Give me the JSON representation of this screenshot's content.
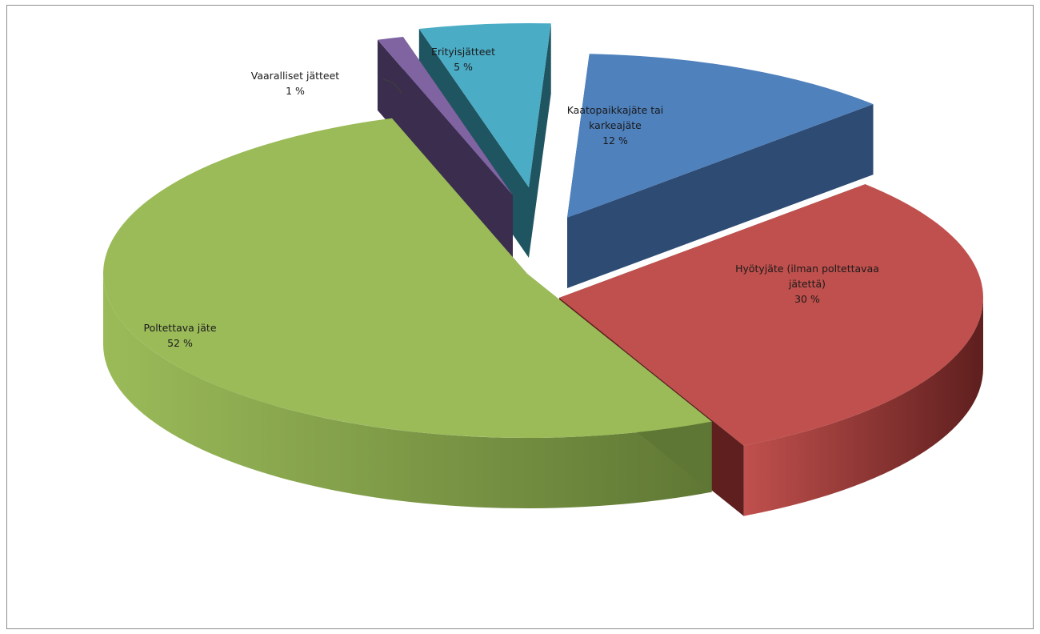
{
  "chart_data": {
    "type": "pie",
    "title": "",
    "style": "exploded 3D pie",
    "legend": "none",
    "slices": [
      {
        "name": "Kaatopaikkajäte tai karkeajäte",
        "label_lines": [
          "Kaatopaikkajäte tai",
          "karkeajäte"
        ],
        "value": 12,
        "percent_label": "12 %",
        "color": "#4F81BD",
        "side_color": "#2E4B73"
      },
      {
        "name": "Hyötyjäte (ilman poltettavaa jätettä)",
        "label_lines": [
          "Hyötyjäte (ilman poltettavaa",
          "jätettä)"
        ],
        "value": 30,
        "percent_label": "30 %",
        "color": "#C0504D",
        "side_color": "#5E1F1E"
      },
      {
        "name": "Poltettava jäte",
        "label_lines": [
          "Poltettava jäte"
        ],
        "value": 52,
        "percent_label": "52 %",
        "color": "#9BBB59",
        "side_color": "#5F7734"
      },
      {
        "name": "Vaaralliset jätteet",
        "label_lines": [
          "Vaaralliset jätteet"
        ],
        "value": 1,
        "percent_label": "1 %",
        "color": "#8064A2",
        "side_color": "#3A2D4E"
      },
      {
        "name": "Erityisjätteet",
        "label_lines": [
          "Erityisjätteet"
        ],
        "value": 5,
        "percent_label": "5 %",
        "color": "#4BACC6",
        "side_color": "#1F5561"
      }
    ]
  }
}
